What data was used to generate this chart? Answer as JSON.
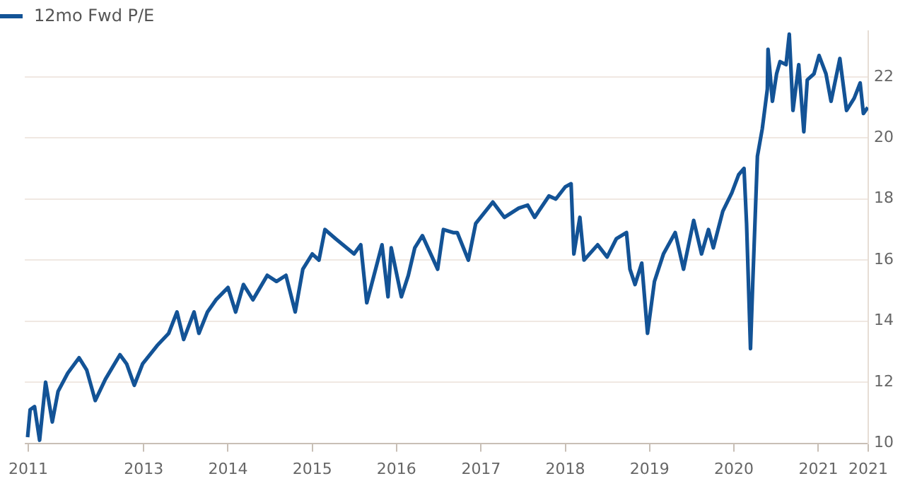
{
  "chart_data": {
    "type": "line",
    "x": [
      "2011-08-17",
      "2011-08-28",
      "2011-09-16",
      "2011-10-08",
      "2011-11-03",
      "2011-12-02",
      "2011-12-27",
      "2012-02-07",
      "2012-03-27",
      "2012-04-29",
      "2012-06-05",
      "2012-07-19",
      "2012-09-20",
      "2012-10-19",
      "2012-11-21",
      "2012-12-27",
      "2013-02-28",
      "2013-04-19",
      "2013-05-25",
      "2013-06-23",
      "2013-08-07",
      "2013-08-28",
      "2013-10-04",
      "2013-11-10",
      "2014-01-01",
      "2014-02-03",
      "2014-03-09",
      "2014-04-19",
      "2014-06-20",
      "2014-07-30",
      "2014-09-09",
      "2014-10-19",
      "2014-11-21",
      "2015-01-01",
      "2015-01-30",
      "2015-02-25",
      "2015-04-12",
      "2015-07-01",
      "2015-07-30",
      "2015-08-25",
      "2015-10-30",
      "2015-11-25",
      "2015-12-09",
      "2016-01-22",
      "2016-02-21",
      "2016-03-20",
      "2016-04-22",
      "2016-06-27",
      "2016-07-22",
      "2016-09-02",
      "2016-09-20",
      "2016-11-07",
      "2016-12-09",
      "2017-02-21",
      "2017-04-12",
      "2017-06-13",
      "2017-07-22",
      "2017-08-21",
      "2017-10-22",
      "2017-11-21",
      "2018-01-01",
      "2018-01-26",
      "2018-02-07",
      "2018-03-05",
      "2018-03-23",
      "2018-05-21",
      "2018-07-01",
      "2018-08-10",
      "2018-09-23",
      "2018-10-08",
      "2018-10-30",
      "2018-11-28",
      "2018-12-23",
      "2019-01-22",
      "2019-03-02",
      "2019-04-22",
      "2019-05-28",
      "2019-07-11",
      "2019-08-14",
      "2019-09-13",
      "2019-10-04",
      "2019-11-14",
      "2019-12-23",
      "2020-01-22",
      "2020-02-14",
      "2020-02-25",
      "2020-03-13",
      "2020-03-23",
      "2020-04-12",
      "2020-05-03",
      "2020-05-25",
      "2020-05-28",
      "2020-06-16",
      "2020-07-04",
      "2020-07-19",
      "2020-08-14",
      "2020-08-28",
      "2020-09-13",
      "2020-10-08",
      "2020-10-30",
      "2020-11-14",
      "2020-12-13",
      "2021-01-04",
      "2021-02-03",
      "2021-02-25",
      "2021-04-04",
      "2021-05-03",
      "2021-06-05",
      "2021-07-01",
      "2021-07-15",
      "2021-08-03"
    ],
    "series": [
      {
        "name": "12mo Fwd P/E",
        "color": "#135396",
        "values": [
          10.2,
          11.1,
          11.2,
          10.1,
          12.0,
          10.7,
          11.7,
          12.3,
          12.8,
          12.4,
          11.4,
          12.1,
          12.9,
          12.6,
          11.9,
          12.6,
          13.2,
          13.6,
          14.3,
          13.4,
          14.3,
          13.6,
          14.3,
          14.7,
          15.1,
          14.3,
          15.2,
          14.7,
          15.5,
          15.3,
          15.5,
          14.3,
          15.7,
          16.2,
          16.0,
          17.0,
          16.7,
          16.2,
          16.5,
          14.6,
          16.5,
          14.8,
          16.4,
          14.8,
          15.5,
          16.4,
          16.8,
          15.7,
          17.0,
          16.9,
          16.9,
          16.0,
          17.2,
          17.9,
          17.4,
          17.7,
          17.8,
          17.4,
          18.1,
          18.0,
          18.4,
          18.5,
          16.2,
          17.4,
          16.0,
          16.5,
          16.1,
          16.7,
          16.9,
          15.7,
          15.2,
          15.9,
          13.6,
          15.3,
          16.2,
          16.9,
          15.7,
          17.3,
          16.2,
          17.0,
          16.4,
          17.6,
          18.2,
          18.8,
          19.0,
          17.2,
          13.1,
          15.3,
          19.4,
          20.3,
          21.6,
          22.9,
          21.2,
          22.1,
          22.5,
          22.4,
          23.4,
          20.9,
          22.4,
          20.2,
          21.9,
          22.1,
          22.7,
          22.1,
          21.2,
          22.6,
          20.9,
          21.3,
          21.8,
          20.8,
          21.0
        ]
      }
    ],
    "xlim": [
      "2011-08-05",
      "2021-08-05"
    ],
    "xticks": [
      {
        "value": "2011-08-20",
        "label": "2011"
      },
      {
        "value": "2013-01-01",
        "label": "2013"
      },
      {
        "value": "2014-01-01",
        "label": "2014"
      },
      {
        "value": "2015-01-01",
        "label": "2015"
      },
      {
        "value": "2016-01-01",
        "label": "2016"
      },
      {
        "value": "2017-01-01",
        "label": "2017"
      },
      {
        "value": "2018-01-01",
        "label": "2018"
      },
      {
        "value": "2019-01-01",
        "label": "2019"
      },
      {
        "value": "2020-01-01",
        "label": "2020"
      },
      {
        "value": "2021-01-01",
        "label": "2021"
      },
      {
        "value": "2021-08-05",
        "label": "2021"
      }
    ],
    "ylim": [
      10,
      23.5
    ],
    "yticks": [
      10,
      12,
      14,
      16,
      18,
      20,
      22
    ],
    "grid": "y",
    "legend": "top left",
    "marker": "none",
    "line_style": "solid"
  }
}
